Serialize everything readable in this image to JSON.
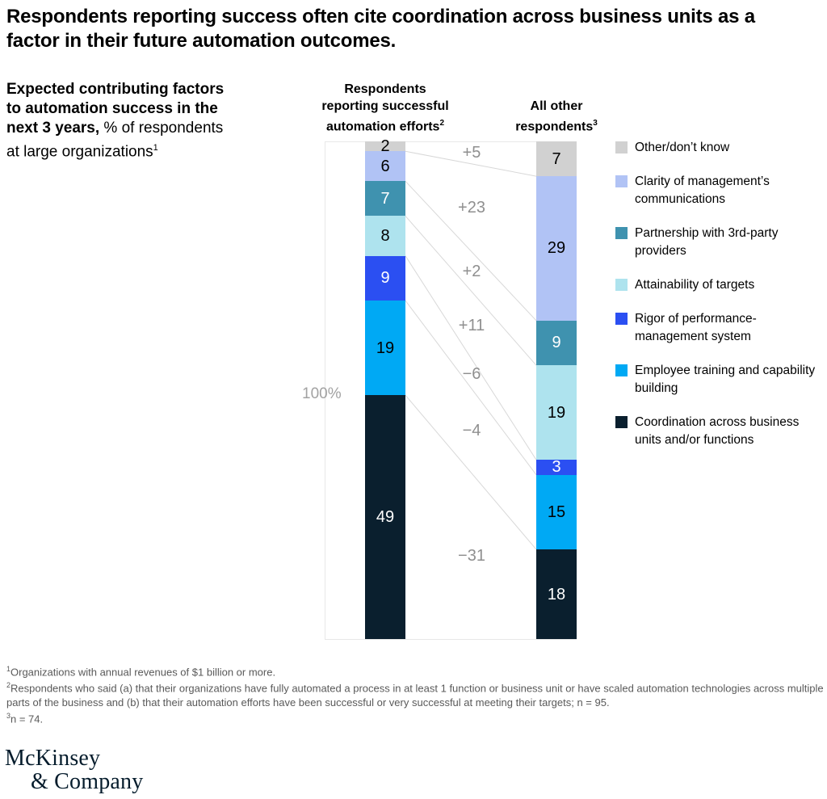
{
  "title": "Respondents reporting success often cite coordination across business units as a factor in their future automation outcomes.",
  "subtitle": {
    "bold": "Expected contributing factors to automation success in the next 3 years,",
    "regular": " % of respondents at large organizations",
    "sup": "1"
  },
  "axis_label": "100%",
  "columns": [
    {
      "header": "Respondents reporting successful automation efforts",
      "sup": "2"
    },
    {
      "header": "All other respondents",
      "sup": "3"
    }
  ],
  "chart_data": {
    "type": "bar",
    "stacked": true,
    "unit": "% of respondents",
    "total_label": "100%",
    "categories": [
      "Respondents reporting successful automation efforts",
      "All other respondents"
    ],
    "series": [
      {
        "name": "Other/don’t know",
        "color": "#d1d1d1",
        "label_color": "#000000",
        "values": [
          2,
          7
        ],
        "diff": "+5"
      },
      {
        "name": "Clarity of management’s communications",
        "color": "#b1c3f5",
        "label_color": "#000000",
        "values": [
          6,
          29
        ],
        "diff": "+23"
      },
      {
        "name": "Partnership with 3rd-party providers",
        "color": "#3f92af",
        "label_color": "#ffffff",
        "values": [
          7,
          9
        ],
        "diff": "+2"
      },
      {
        "name": "Attainability of targets",
        "color": "#aee3ee",
        "label_color": "#000000",
        "values": [
          8,
          19
        ],
        "diff": "+11"
      },
      {
        "name": "Rigor of performance-management system",
        "color": "#2b4ff2",
        "label_color": "#ffffff",
        "values": [
          9,
          3
        ],
        "diff": "−6"
      },
      {
        "name": "Employee training and capability building",
        "color": "#00a9f4",
        "label_color": "#000000",
        "values": [
          19,
          15
        ],
        "diff": "−4"
      },
      {
        "name": "Coordination across business units and/or functions",
        "color": "#0a1f2e",
        "label_color": "#ffffff",
        "values": [
          49,
          18
        ],
        "diff": "−31"
      }
    ],
    "legend_position": "right",
    "connector_color": "#d8d8d8"
  },
  "footnotes": [
    {
      "sup": "1",
      "text": "Organizations with annual revenues of $1 billion or more."
    },
    {
      "sup": "2",
      "text": "Respondents who said (a) that their organizations have fully automated a process in at least 1 function or business unit or have scaled automation technologies across multiple parts of the business and (b) that their automation efforts have been successful or very successful at meeting their targets; n = 95."
    },
    {
      "sup": "3",
      "text": "n = 74."
    }
  ],
  "logo": {
    "line1": "McKinsey",
    "line2": "& Company"
  },
  "colors": {
    "logo": "#051c2c",
    "footnote": "#595959",
    "diff_label": "#8f8f8f",
    "axis_label": "#a2a2a2"
  }
}
